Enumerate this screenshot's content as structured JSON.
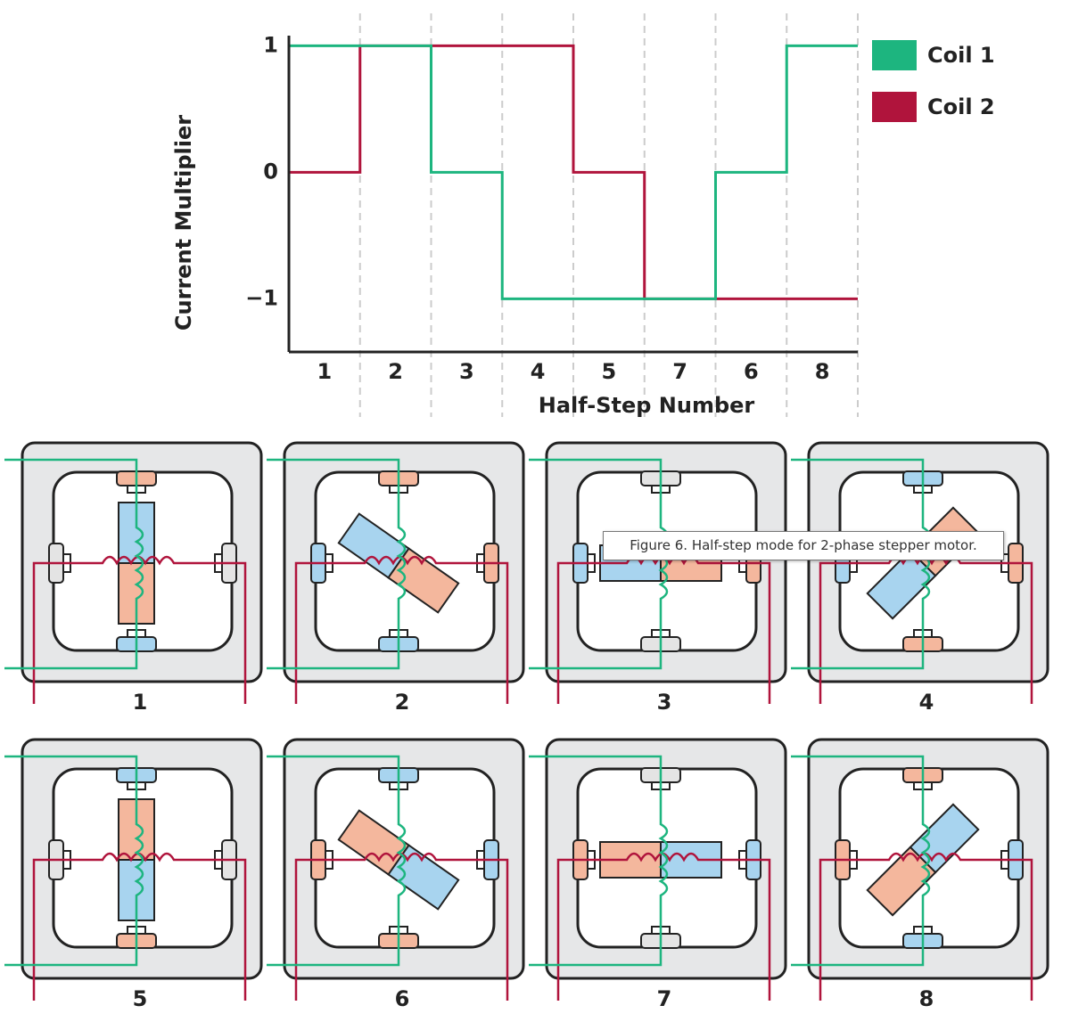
{
  "chart_data": {
    "type": "step",
    "y_label": "Current Multiplier",
    "x_label": "Half-Step Number",
    "categories": [
      "1",
      "2",
      "3",
      "4",
      "5",
      "7",
      "6",
      "8"
    ],
    "series": [
      {
        "name": "Coil 1",
        "color": "#1db57f",
        "values": [
          1,
          1,
          0,
          -1,
          -1,
          -1,
          0,
          1
        ]
      },
      {
        "name": "Coil 2",
        "color": "#b0143c",
        "values": [
          0,
          1,
          1,
          1,
          0,
          -1,
          -1,
          -1
        ]
      }
    ],
    "ylim": [
      -1.42,
      1.08
    ],
    "yticks": [
      {
        "value": -1,
        "label": "−1"
      },
      0,
      1
    ],
    "legend": "upper right"
  },
  "panels": [
    "1",
    "2",
    "3",
    "4",
    "5",
    "6",
    "7",
    "8"
  ],
  "tooltip": "Figure 6. Half-step mode for 2-phase stepper motor."
}
